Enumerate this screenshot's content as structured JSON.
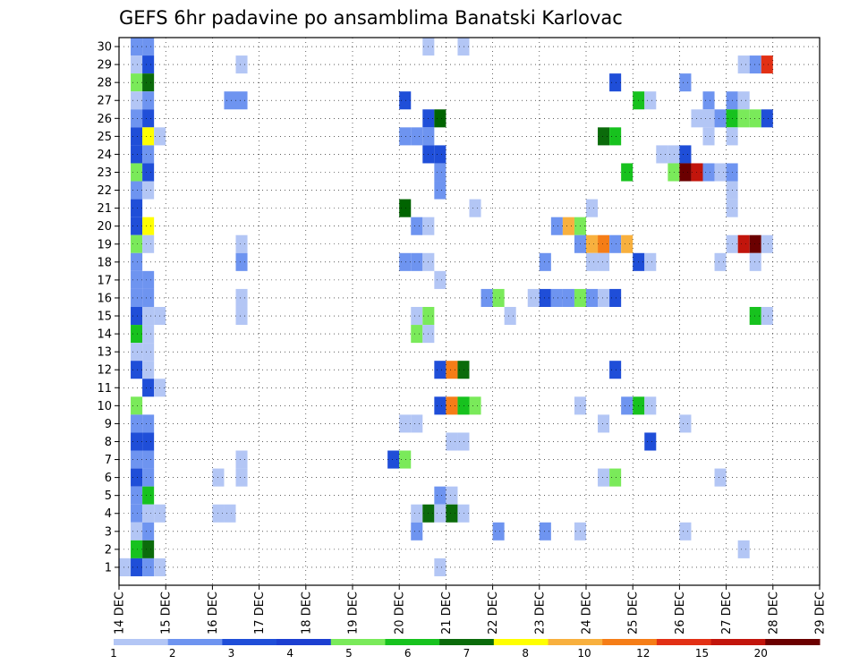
{
  "chart_data": {
    "type": "heatmap",
    "title": "GEFS 6hr padavine po ansamblima Banatski Karlovac",
    "xlabel": "",
    "ylabel": "",
    "x_ticks": [
      "14 DEC",
      "15 DEC",
      "16 DEC",
      "17 DEC",
      "18 DEC",
      "19 DEC",
      "20 DEC",
      "21 DEC",
      "22 DEC",
      "23 DEC",
      "24 DEC",
      "25 DEC",
      "26 DEC",
      "27 DEC",
      "28 DEC",
      "29 DEC"
    ],
    "y_ticks": [
      "1",
      "2",
      "3",
      "4",
      "5",
      "6",
      "7",
      "8",
      "9",
      "10",
      "11",
      "12",
      "13",
      "14",
      "15",
      "16",
      "17",
      "18",
      "19",
      "20",
      "21",
      "22",
      "23",
      "24",
      "25",
      "26",
      "27",
      "28",
      "29",
      "30"
    ],
    "grid": true,
    "time_steps": 61,
    "colorbar": {
      "labels": [
        "1",
        "2",
        "3",
        "4",
        "5",
        "6",
        "7",
        "8",
        "10",
        "12",
        "15",
        "20"
      ],
      "colors": [
        "#b3c6f5",
        "#6e94f0",
        "#1f4ed8",
        "#1c3fd1",
        "#7aea5a",
        "#17c21e",
        "#0b6b0b",
        "#ffff00",
        "#f8b03e",
        "#f57d17",
        "#e23015",
        "#c2150c",
        "#6b0000"
      ]
    },
    "cells": [
      [
        0,
        1,
        0,
        "#b3c6f5"
      ],
      [
        1,
        1,
        0,
        "#b3c6f5"
      ],
      [
        0,
        2,
        29,
        "#b3c6f5"
      ],
      [
        1,
        2,
        29,
        "#6e94f0"
      ],
      [
        1,
        3,
        29,
        "#6e94f0"
      ],
      [
        1,
        2,
        28,
        "#b3c6f5"
      ],
      [
        1,
        3,
        28,
        "#1f4ed8"
      ],
      [
        1,
        2,
        27,
        "#7aea5a"
      ],
      [
        1,
        3,
        27,
        "#0b6b0b"
      ],
      [
        1,
        2,
        26,
        "#b3c6f5"
      ],
      [
        1,
        3,
        26,
        "#6e94f0"
      ],
      [
        1,
        2,
        25,
        "#6e94f0"
      ],
      [
        1,
        3,
        25,
        "#1f4ed8"
      ],
      [
        1,
        2,
        24,
        "#1f4ed8"
      ],
      [
        1,
        3,
        24,
        "#ffff00"
      ],
      [
        1,
        4,
        24,
        "#b3c6f5"
      ],
      [
        1,
        2,
        23,
        "#1f4ed8"
      ],
      [
        1,
        3,
        23,
        "#6e94f0"
      ],
      [
        1,
        2,
        22,
        "#7aea5a"
      ],
      [
        1,
        3,
        22,
        "#1f4ed8"
      ],
      [
        1,
        2,
        21,
        "#6e94f0"
      ],
      [
        1,
        3,
        21,
        "#b3c6f5"
      ],
      [
        1,
        2,
        20,
        "#1f4ed8"
      ],
      [
        1,
        2,
        19,
        "#1f4ed8"
      ],
      [
        1,
        3,
        19,
        "#ffff00"
      ],
      [
        1,
        2,
        18,
        "#7aea5a"
      ],
      [
        1,
        3,
        18,
        "#b3c6f5"
      ],
      [
        1,
        2,
        17,
        "#6e94f0"
      ],
      [
        1,
        2,
        16,
        "#6e94f0"
      ],
      [
        1,
        3,
        16,
        "#6e94f0"
      ],
      [
        1,
        2,
        15,
        "#6e94f0"
      ],
      [
        1,
        3,
        15,
        "#6e94f0"
      ],
      [
        1,
        2,
        14,
        "#1f4ed8"
      ],
      [
        1,
        3,
        14,
        "#b3c6f5"
      ],
      [
        1,
        4,
        14,
        "#b3c6f5"
      ],
      [
        1,
        2,
        13,
        "#17c21e"
      ],
      [
        1,
        3,
        13,
        "#b3c6f5"
      ],
      [
        1,
        2,
        12,
        "#b3c6f5"
      ],
      [
        1,
        3,
        12,
        "#b3c6f5"
      ],
      [
        1,
        2,
        11,
        "#1f4ed8"
      ],
      [
        1,
        3,
        11,
        "#b3c6f5"
      ],
      [
        1,
        3,
        10,
        "#1f4ed8"
      ],
      [
        1,
        4,
        10,
        "#b3c6f5"
      ],
      [
        1,
        2,
        9,
        "#7aea5a"
      ],
      [
        1,
        2,
        8,
        "#6e94f0"
      ],
      [
        1,
        3,
        8,
        "#6e94f0"
      ],
      [
        1,
        2,
        7,
        "#1f4ed8"
      ],
      [
        1,
        3,
        7,
        "#1f4ed8"
      ],
      [
        1,
        2,
        6,
        "#6e94f0"
      ],
      [
        1,
        3,
        6,
        "#6e94f0"
      ],
      [
        1,
        2,
        5,
        "#1f4ed8"
      ],
      [
        1,
        3,
        5,
        "#6e94f0"
      ],
      [
        1,
        2,
        4,
        "#6e94f0"
      ],
      [
        1,
        3,
        4,
        "#17c21e"
      ],
      [
        1,
        2,
        3,
        "#6e94f0"
      ],
      [
        1,
        3,
        3,
        "#b3c6f5"
      ],
      [
        1,
        4,
        3,
        "#b3c6f5"
      ],
      [
        1,
        2,
        2,
        "#b3c6f5"
      ],
      [
        1,
        3,
        2,
        "#6e94f0"
      ],
      [
        1,
        2,
        1,
        "#17c21e"
      ],
      [
        1,
        3,
        1,
        "#0b6b0b"
      ],
      [
        1,
        2,
        0,
        "#1f4ed8"
      ],
      [
        1,
        3,
        0,
        "#6e94f0"
      ],
      [
        1,
        4,
        0,
        "#b3c6f5"
      ],
      [
        1,
        11,
        28,
        "#b3c6f5"
      ],
      [
        1,
        10,
        26,
        "#6e94f0"
      ],
      [
        1,
        11,
        26,
        "#6e94f0"
      ],
      [
        1,
        11,
        18,
        "#b3c6f5"
      ],
      [
        1,
        11,
        17,
        "#6e94f0"
      ],
      [
        1,
        11,
        15,
        "#b3c6f5"
      ],
      [
        1,
        11,
        14,
        "#b3c6f5"
      ],
      [
        1,
        9,
        5,
        "#b3c6f5"
      ],
      [
        1,
        11,
        5,
        "#b3c6f5"
      ],
      [
        1,
        11,
        6,
        "#b3c6f5"
      ],
      [
        1,
        9,
        3,
        "#b3c6f5"
      ],
      [
        1,
        10,
        3,
        "#b3c6f5"
      ],
      [
        1,
        27,
        29,
        "#b3c6f5"
      ],
      [
        1,
        30,
        29,
        "#b3c6f5"
      ],
      [
        1,
        25,
        26,
        "#1f4ed8"
      ],
      [
        1,
        27,
        25,
        "#1f4ed8"
      ],
      [
        1,
        28,
        25,
        "#006400"
      ],
      [
        1,
        27,
        24,
        "#6e94f0"
      ],
      [
        1,
        25,
        24,
        "#6e94f0"
      ],
      [
        1,
        26,
        24,
        "#6e94f0"
      ],
      [
        1,
        27,
        23,
        "#1f4ed8"
      ],
      [
        1,
        28,
        23,
        "#1f4ed8"
      ],
      [
        1,
        28,
        22,
        "#6e94f0"
      ],
      [
        1,
        28,
        21,
        "#6e94f0"
      ],
      [
        1,
        25,
        20,
        "#006400"
      ],
      [
        1,
        26,
        19,
        "#6e94f0"
      ],
      [
        1,
        27,
        19,
        "#b3c6f5"
      ],
      [
        1,
        25,
        17,
        "#6e94f0"
      ],
      [
        1,
        26,
        17,
        "#6e94f0"
      ],
      [
        1,
        27,
        17,
        "#b3c6f5"
      ],
      [
        1,
        28,
        16,
        "#b3c6f5"
      ],
      [
        1,
        26,
        14,
        "#b3c6f5"
      ],
      [
        1,
        27,
        14,
        "#7aea5a"
      ],
      [
        1,
        26,
        13,
        "#7aea5a"
      ],
      [
        1,
        27,
        13,
        "#b3c6f5"
      ],
      [
        1,
        28,
        9,
        "#1f4ed8"
      ],
      [
        1,
        29,
        9,
        "#f57d17"
      ],
      [
        1,
        30,
        9,
        "#17c21e"
      ],
      [
        1,
        31,
        9,
        "#7aea5a"
      ],
      [
        1,
        25,
        8,
        "#b3c6f5"
      ],
      [
        1,
        26,
        8,
        "#b3c6f5"
      ],
      [
        1,
        29,
        7,
        "#b3c6f5"
      ],
      [
        1,
        30,
        7,
        "#b3c6f5"
      ],
      [
        1,
        24,
        6,
        "#1f4ed8"
      ],
      [
        1,
        25,
        6,
        "#7aea5a"
      ],
      [
        1,
        28,
        4,
        "#6e94f0"
      ],
      [
        1,
        29,
        4,
        "#b3c6f5"
      ],
      [
        1,
        26,
        3,
        "#b3c6f5"
      ],
      [
        1,
        27,
        3,
        "#0b6b0b"
      ],
      [
        1,
        28,
        3,
        "#b3c6f5"
      ],
      [
        1,
        29,
        3,
        "#0b6b0b"
      ],
      [
        1,
        30,
        3,
        "#b3c6f5"
      ],
      [
        1,
        26,
        2,
        "#6e94f0"
      ],
      [
        1,
        28,
        0,
        "#b3c6f5"
      ],
      [
        1,
        28,
        11,
        "#1f4ed8"
      ],
      [
        1,
        29,
        11,
        "#f57d17"
      ],
      [
        1,
        30,
        11,
        "#0b6b0b"
      ],
      [
        1,
        31,
        20,
        "#b3c6f5"
      ],
      [
        1,
        33,
        2,
        "#6e94f0"
      ],
      [
        1,
        32,
        15,
        "#6e94f0"
      ],
      [
        1,
        33,
        15,
        "#7aea5a"
      ],
      [
        1,
        34,
        14,
        "#b3c6f5"
      ],
      [
        1,
        36,
        15,
        "#b3c6f5"
      ],
      [
        1,
        37,
        15,
        "#1f4ed8"
      ],
      [
        1,
        38,
        15,
        "#6e94f0"
      ],
      [
        1,
        39,
        15,
        "#6e94f0"
      ],
      [
        1,
        40,
        15,
        "#7aea5a"
      ],
      [
        1,
        41,
        15,
        "#6e94f0"
      ],
      [
        1,
        42,
        15,
        "#b3c6f5"
      ],
      [
        1,
        43,
        15,
        "#1f4ed8"
      ],
      [
        1,
        37,
        17,
        "#6e94f0"
      ],
      [
        1,
        37,
        2,
        "#6e94f0"
      ],
      [
        1,
        38,
        19,
        "#6e94f0"
      ],
      [
        1,
        39,
        19,
        "#f8b03e"
      ],
      [
        1,
        40,
        19,
        "#7aea5a"
      ],
      [
        1,
        40,
        18,
        "#6e94f0"
      ],
      [
        1,
        41,
        18,
        "#f8b03e"
      ],
      [
        1,
        42,
        18,
        "#f57d17"
      ],
      [
        1,
        43,
        18,
        "#6e94f0"
      ],
      [
        1,
        44,
        18,
        "#f8b03e"
      ],
      [
        1,
        41,
        17,
        "#b3c6f5"
      ],
      [
        1,
        42,
        17,
        "#b3c6f5"
      ],
      [
        1,
        42,
        24,
        "#0b6b0b"
      ],
      [
        1,
        43,
        24,
        "#17c21e"
      ],
      [
        1,
        43,
        27,
        "#1f4ed8"
      ],
      [
        1,
        41,
        20,
        "#b3c6f5"
      ],
      [
        1,
        44,
        22,
        "#17c21e"
      ],
      [
        1,
        40,
        9,
        "#b3c6f5"
      ],
      [
        1,
        44,
        9,
        "#6e94f0"
      ],
      [
        1,
        45,
        9,
        "#17c21e"
      ],
      [
        1,
        46,
        9,
        "#b3c6f5"
      ],
      [
        1,
        42,
        8,
        "#b3c6f5"
      ],
      [
        1,
        46,
        7,
        "#1f4ed8"
      ],
      [
        1,
        42,
        5,
        "#b3c6f5"
      ],
      [
        1,
        43,
        5,
        "#7aea5a"
      ],
      [
        1,
        40,
        2,
        "#b3c6f5"
      ],
      [
        1,
        43,
        11,
        "#1f4ed8"
      ],
      [
        1,
        45,
        26,
        "#17c21e"
      ],
      [
        1,
        46,
        26,
        "#b3c6f5"
      ],
      [
        1,
        45,
        17,
        "#1f4ed8"
      ],
      [
        1,
        46,
        17,
        "#b3c6f5"
      ],
      [
        1,
        47,
        23,
        "#b3c6f5"
      ],
      [
        1,
        48,
        23,
        "#b3c6f5"
      ],
      [
        1,
        49,
        23,
        "#1f4ed8"
      ],
      [
        1,
        48,
        22,
        "#7aea5a"
      ],
      [
        1,
        49,
        22,
        "#6b0000"
      ],
      [
        1,
        50,
        22,
        "#c2150c"
      ],
      [
        1,
        51,
        22,
        "#6e94f0"
      ],
      [
        1,
        52,
        22,
        "#b3c6f5"
      ],
      [
        1,
        53,
        22,
        "#6e94f0"
      ],
      [
        1,
        49,
        27,
        "#6e94f0"
      ],
      [
        1,
        51,
        24,
        "#b3c6f5"
      ],
      [
        1,
        51,
        26,
        "#6e94f0"
      ],
      [
        1,
        53,
        26,
        "#6e94f0"
      ],
      [
        1,
        54,
        26,
        "#b3c6f5"
      ],
      [
        1,
        50,
        25,
        "#b3c6f5"
      ],
      [
        1,
        51,
        25,
        "#b3c6f5"
      ],
      [
        1,
        52,
        25,
        "#6e94f0"
      ],
      [
        1,
        53,
        25,
        "#17c21e"
      ],
      [
        1,
        54,
        25,
        "#7aea5a"
      ],
      [
        1,
        55,
        25,
        "#7aea5a"
      ],
      [
        1,
        56,
        25,
        "#1f4ed8"
      ],
      [
        1,
        53,
        24,
        "#b3c6f5"
      ],
      [
        1,
        53,
        20,
        "#b3c6f5"
      ],
      [
        1,
        53,
        21,
        "#b3c6f5"
      ],
      [
        1,
        53,
        18,
        "#b3c6f5"
      ],
      [
        1,
        54,
        18,
        "#c2150c"
      ],
      [
        1,
        55,
        18,
        "#6b0000"
      ],
      [
        1,
        56,
        18,
        "#b3c6f5"
      ],
      [
        1,
        52,
        17,
        "#b3c6f5"
      ],
      [
        1,
        55,
        17,
        "#b3c6f5"
      ],
      [
        1,
        55,
        14,
        "#17c21e"
      ],
      [
        1,
        56,
        14,
        "#b3c6f5"
      ],
      [
        1,
        54,
        28,
        "#b3c6f5"
      ],
      [
        1,
        55,
        28,
        "#6e94f0"
      ],
      [
        1,
        56,
        28,
        "#e23015"
      ],
      [
        1,
        49,
        8,
        "#b3c6f5"
      ],
      [
        1,
        52,
        5,
        "#b3c6f5"
      ],
      [
        1,
        49,
        2,
        "#b3c6f5"
      ],
      [
        1,
        54,
        1,
        "#b3c6f5"
      ]
    ]
  }
}
